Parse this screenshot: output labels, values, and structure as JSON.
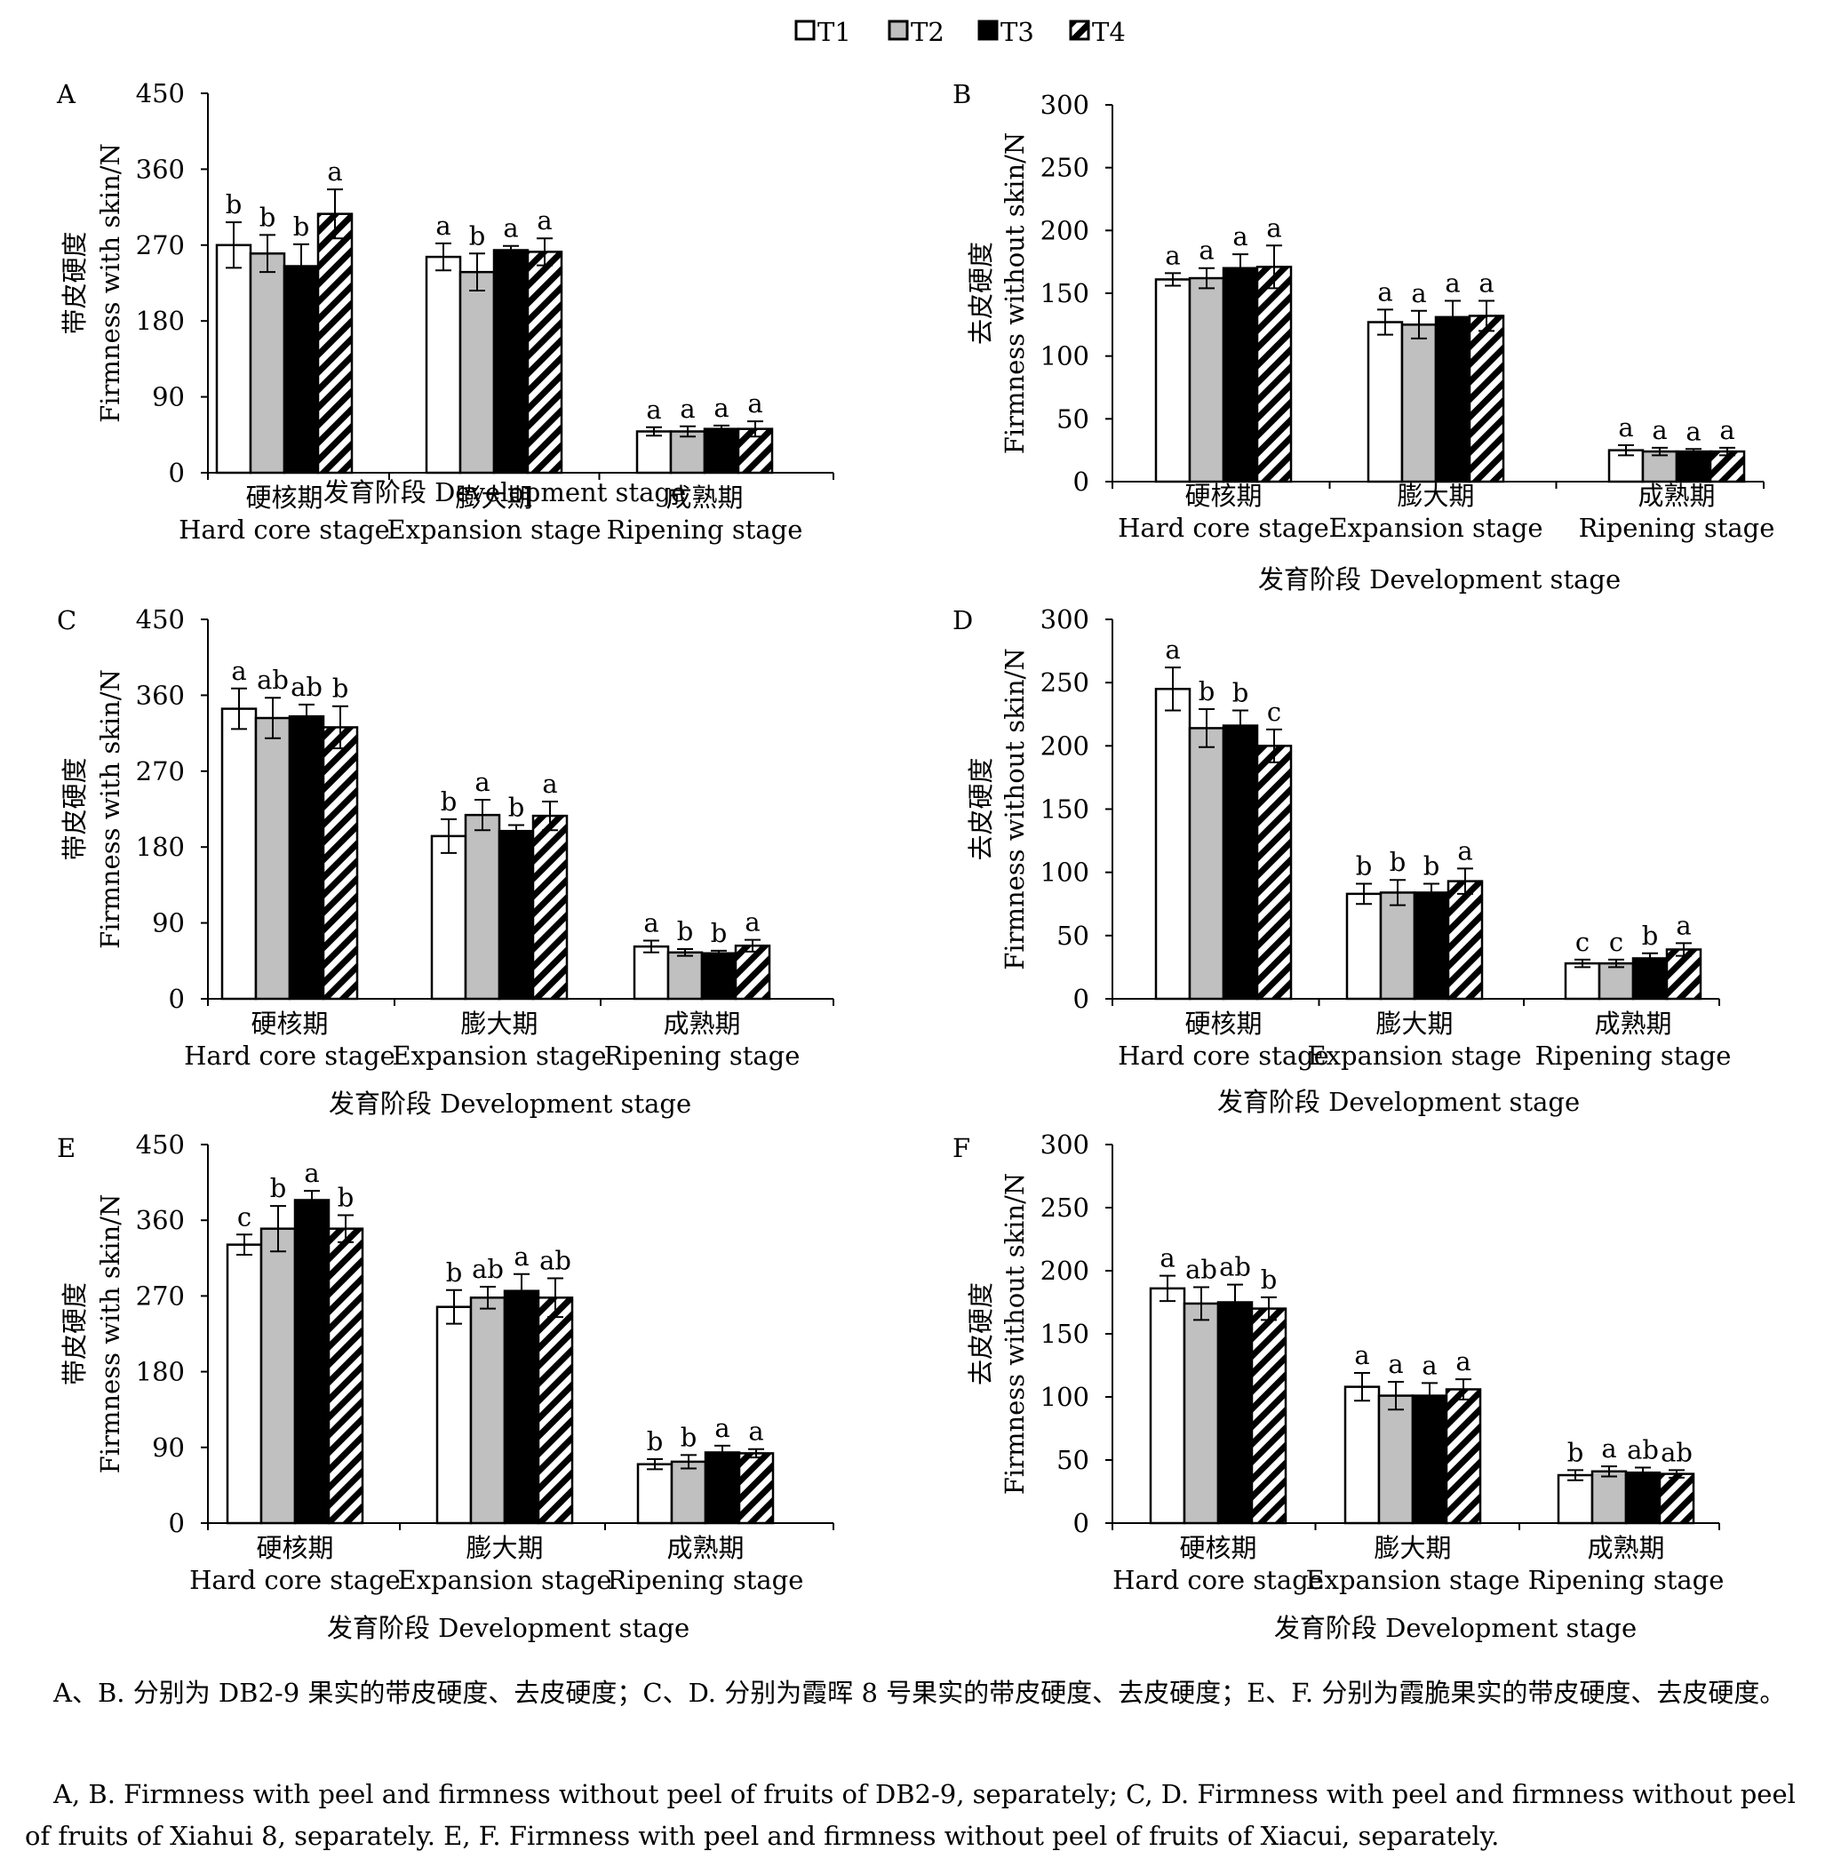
{
  "legend": {
    "items": [
      {
        "label": "T1",
        "color": "#ffffff",
        "pattern": "solid"
      },
      {
        "label": "T2",
        "color": "#c0c0c0",
        "pattern": "solid"
      },
      {
        "label": "T3",
        "color": "#000000",
        "pattern": "solid"
      },
      {
        "label": "T4",
        "color": "#ffffff",
        "pattern": "diagonal-hatch"
      }
    ],
    "placement": "top-center"
  },
  "chart_data": [
    {
      "panel": "A",
      "type": "bar",
      "ylabel_cn": "带皮硬度",
      "ylabel_en": "Firmness with skin/N",
      "xlabel": "发育阶段 Development stage",
      "categories_cn": [
        "硬核期",
        "膨大期",
        "成熟期"
      ],
      "categories_en": [
        "Hard core stage",
        "Expansion stage",
        "Ripening stage"
      ],
      "ylim": [
        0,
        450
      ],
      "yticks": [
        0,
        90,
        180,
        270,
        360,
        450
      ],
      "series": [
        {
          "name": "T1",
          "values": [
            270,
            256,
            49
          ],
          "errors": [
            27,
            16,
            5
          ],
          "letters": [
            "b",
            "a",
            "a"
          ]
        },
        {
          "name": "T2",
          "values": [
            260,
            238,
            49
          ],
          "errors": [
            22,
            22,
            6
          ],
          "letters": [
            "b",
            "b",
            "a"
          ]
        },
        {
          "name": "T3",
          "values": [
            245,
            264,
            52
          ],
          "errors": [
            26,
            5,
            4
          ],
          "letters": [
            "b",
            "a",
            "a"
          ]
        },
        {
          "name": "T4",
          "values": [
            307,
            262,
            52
          ],
          "errors": [
            29,
            16,
            9
          ],
          "letters": [
            "a",
            "a",
            "a"
          ]
        }
      ]
    },
    {
      "panel": "B",
      "type": "bar",
      "ylabel_cn": "去皮硬度",
      "ylabel_en": "Firmness without skin/N",
      "xlabel": "发育阶段 Development stage",
      "categories_cn": [
        "硬核期",
        "膨大期",
        "成熟期"
      ],
      "categories_en": [
        "Hard core stage",
        "Expansion stage",
        "Ripening stage"
      ],
      "ylim": [
        0,
        300
      ],
      "yticks": [
        0,
        50,
        100,
        150,
        200,
        250,
        300
      ],
      "series": [
        {
          "name": "T1",
          "values": [
            161,
            127,
            25
          ],
          "errors": [
            5,
            10,
            4
          ],
          "letters": [
            "a",
            "a",
            "a"
          ]
        },
        {
          "name": "T2",
          "values": [
            162,
            125,
            24
          ],
          "errors": [
            8,
            11,
            3
          ],
          "letters": [
            "a",
            "a",
            "a"
          ]
        },
        {
          "name": "T3",
          "values": [
            170,
            131,
            24
          ],
          "errors": [
            11,
            13,
            2
          ],
          "letters": [
            "a",
            "a",
            "a"
          ]
        },
        {
          "name": "T4",
          "values": [
            171,
            132,
            24
          ],
          "errors": [
            17,
            12,
            3
          ],
          "letters": [
            "a",
            "a",
            "a"
          ]
        }
      ]
    },
    {
      "panel": "C",
      "type": "bar",
      "ylabel_cn": "带皮硬度",
      "ylabel_en": "Firmness with skin/N",
      "xlabel": "发育阶段 Development stage",
      "categories_cn": [
        "硬核期",
        "膨大期",
        "成熟期"
      ],
      "categories_en": [
        "Hard core stage",
        "Expansion stage",
        "Ripening stage"
      ],
      "ylim": [
        0,
        450
      ],
      "yticks": [
        0,
        90,
        180,
        270,
        360,
        450
      ],
      "series": [
        {
          "name": "T1",
          "values": [
            344,
            193,
            62
          ],
          "errors": [
            24,
            20,
            7
          ],
          "letters": [
            "a",
            "b",
            "a"
          ]
        },
        {
          "name": "T2",
          "values": [
            333,
            218,
            55
          ],
          "errors": [
            24,
            18,
            4
          ],
          "letters": [
            "ab",
            "a",
            "b"
          ]
        },
        {
          "name": "T3",
          "values": [
            335,
            199,
            54
          ],
          "errors": [
            14,
            7,
            3
          ],
          "letters": [
            "ab",
            "b",
            "b"
          ]
        },
        {
          "name": "T4",
          "values": [
            322,
            217,
            63
          ],
          "errors": [
            25,
            17,
            7
          ],
          "letters": [
            "b",
            "a",
            "a"
          ]
        }
      ]
    },
    {
      "panel": "D",
      "type": "bar",
      "ylabel_cn": "去皮硬度",
      "ylabel_en": "Firmness without skin/N",
      "xlabel": "发育阶段 Development stage",
      "categories_cn": [
        "硬核期",
        "膨大期",
        "成熟期"
      ],
      "categories_en": [
        "Hard core stage",
        "Expansion stage",
        "Ripening stage"
      ],
      "ylim": [
        0,
        300
      ],
      "yticks": [
        0,
        50,
        100,
        150,
        200,
        250,
        300
      ],
      "series": [
        {
          "name": "T1",
          "values": [
            245,
            83,
            28
          ],
          "errors": [
            17,
            8,
            3
          ],
          "letters": [
            "a",
            "b",
            "c"
          ]
        },
        {
          "name": "T2",
          "values": [
            214,
            84,
            28
          ],
          "errors": [
            15,
            10,
            3
          ],
          "letters": [
            "b",
            "b",
            "c"
          ]
        },
        {
          "name": "T3",
          "values": [
            216,
            84,
            32
          ],
          "errors": [
            12,
            7,
            4
          ],
          "letters": [
            "b",
            "b",
            "b"
          ]
        },
        {
          "name": "T4",
          "values": [
            200,
            93,
            39
          ],
          "errors": [
            13,
            10,
            5
          ],
          "letters": [
            "c",
            "a",
            "a"
          ]
        }
      ]
    },
    {
      "panel": "E",
      "type": "bar",
      "ylabel_cn": "带皮硬度",
      "ylabel_en": "Firmness with skin/N",
      "xlabel": "发育阶段 Development stage",
      "categories_cn": [
        "硬核期",
        "膨大期",
        "成熟期"
      ],
      "categories_en": [
        "Hard core stage",
        "Expansion stage",
        "Ripening stage"
      ],
      "ylim": [
        0,
        450
      ],
      "yticks": [
        0,
        90,
        180,
        270,
        360,
        450
      ],
      "series": [
        {
          "name": "T1",
          "values": [
            331,
            257,
            70
          ],
          "errors": [
            12,
            20,
            6
          ],
          "letters": [
            "c",
            "b",
            "b"
          ]
        },
        {
          "name": "T2",
          "values": [
            350,
            268,
            73
          ],
          "errors": [
            27,
            13,
            8
          ],
          "letters": [
            "b",
            "ab",
            "b"
          ]
        },
        {
          "name": "T3",
          "values": [
            384,
            276,
            84
          ],
          "errors": [
            11,
            20,
            8
          ],
          "letters": [
            "a",
            "a",
            "a"
          ]
        },
        {
          "name": "T4",
          "values": [
            350,
            268,
            83
          ],
          "errors": [
            16,
            23,
            5
          ],
          "letters": [
            "b",
            "ab",
            "a"
          ]
        }
      ]
    },
    {
      "panel": "F",
      "type": "bar",
      "ylabel_cn": "去皮硬度",
      "ylabel_en": "Firmness without skin/N",
      "xlabel": "发育阶段 Development stage",
      "categories_cn": [
        "硬核期",
        "膨大期",
        "成熟期"
      ],
      "categories_en": [
        "Hard core stage",
        "Expansion stage",
        "Ripening stage"
      ],
      "ylim": [
        0,
        300
      ],
      "yticks": [
        0,
        50,
        100,
        150,
        200,
        250,
        300
      ],
      "series": [
        {
          "name": "T1",
          "values": [
            186,
            108,
            38
          ],
          "errors": [
            10,
            11,
            4
          ],
          "letters": [
            "a",
            "a",
            "b"
          ]
        },
        {
          "name": "T2",
          "values": [
            174,
            101,
            41
          ],
          "errors": [
            13,
            11,
            4
          ],
          "letters": [
            "ab",
            "a",
            "a"
          ]
        },
        {
          "name": "T3",
          "values": [
            175,
            101,
            40
          ],
          "errors": [
            14,
            10,
            4
          ],
          "letters": [
            "ab",
            "a",
            "ab"
          ]
        },
        {
          "name": "T4",
          "values": [
            170,
            106,
            39
          ],
          "errors": [
            9,
            8,
            3
          ],
          "letters": [
            "b",
            "a",
            "ab"
          ]
        }
      ]
    }
  ],
  "caption": {
    "cn": "A、B. 分别为 DB2-9 果实的带皮硬度、去皮硬度；C、D. 分别为霞晖 8 号果实的带皮硬度、去皮硬度；E、F. 分别为霞脆果实的带皮硬度、去皮硬度。",
    "en": "A, B. Firmness with peel and firmness without peel of fruits of DB2-9, separately; C, D. Firmness with peel and firmness without peel of fruits of Xiahui 8, separately. E, F. Firmness with peel and firmness without peel of fruits of Xiacui, separately."
  }
}
